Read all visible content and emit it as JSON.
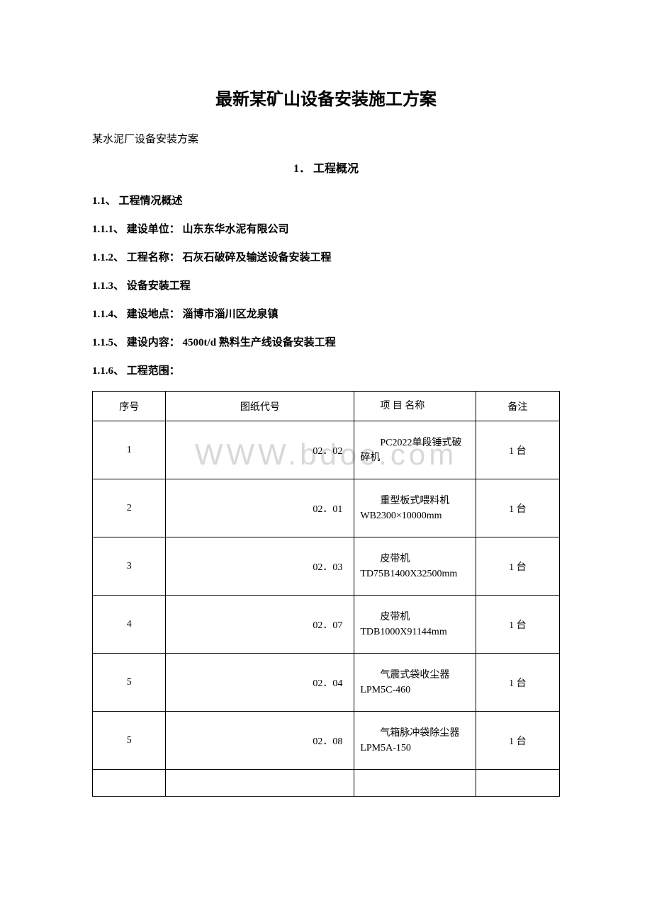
{
  "watermark": "WWW.bdoc.com",
  "title": "最新某矿山设备安装施工方案",
  "subtitle": "某水泥厂设备安装方案",
  "sectionHeader": "1． 工程概况",
  "items": [
    {
      "num": "1.1、",
      "label": "工程情况概述",
      "value": ""
    },
    {
      "num": "1.1.1、",
      "label": "建设单位：",
      "value": "山东东华水泥有限公司"
    },
    {
      "num": "1.1.2、",
      "label": "工程名称：",
      "value": "石灰石破碎及输送设备安装工程"
    },
    {
      "num": "1.1.3、",
      "label": "设备安装工程",
      "value": ""
    },
    {
      "num": "1.1.4、",
      "label": "建设地点：",
      "value": "淄博市淄川区龙泉镇"
    },
    {
      "num": "1.1.5、",
      "label": "建设内容：",
      "value": "4500t/d 熟料生产线设备安装工程"
    },
    {
      "num": "1.1.6、",
      "label": "工程范围：",
      "value": ""
    }
  ],
  "table": {
    "headers": {
      "seq": "序号",
      "code": "图纸代号",
      "name": "项 目 名称",
      "remark": "备注"
    },
    "rows": [
      {
        "seq": "1",
        "code": "02．02",
        "name": "　　PC2022单段锤式破碎机",
        "remark": "1 台"
      },
      {
        "seq": "2",
        "code": "02．01",
        "name": "　　重型板式喂料机WB2300×10000mm",
        "remark": "1 台"
      },
      {
        "seq": "3",
        "code": "02．03",
        "name": "　　皮带机TD75B1400X32500mm",
        "remark": "1 台"
      },
      {
        "seq": "4",
        "code": "02．07",
        "name": "　　皮带机TDB1000X91144mm",
        "remark": "1 台"
      },
      {
        "seq": "5",
        "code": "02．04",
        "name": "　　气震式袋收尘器LPM5C-460",
        "remark": "1 台"
      },
      {
        "seq": "5",
        "code": "02．08",
        "name": "　　气箱脉冲袋除尘器LPM5A-150",
        "remark": "1 台"
      }
    ],
    "colors": {
      "border": "#000000",
      "text": "#000000",
      "background": "#ffffff"
    }
  }
}
